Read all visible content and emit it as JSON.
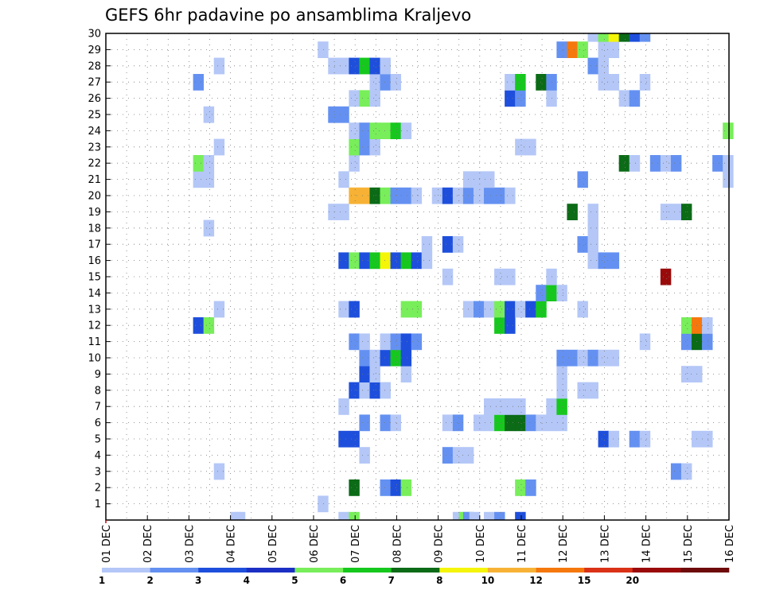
{
  "chart_data": {
    "type": "heatmap",
    "title": "GEFS 6hr padavine po ansamblima Kraljevo",
    "xlabel": "",
    "ylabel": "",
    "x_tick_labels": [
      "01 DEC",
      "02 DEC",
      "03 DEC",
      "04 DEC",
      "05 DEC",
      "06 DEC",
      "07 DEC",
      "08 DEC",
      "09 DEC",
      "10 DEC",
      "11 DEC",
      "12 DEC",
      "13 DEC",
      "14 DEC",
      "15 DEC",
      "16 DEC"
    ],
    "x_range_days": [
      1,
      16
    ],
    "y_tick_labels": [
      "1",
      "2",
      "3",
      "4",
      "5",
      "6",
      "7",
      "8",
      "9",
      "10",
      "11",
      "12",
      "13",
      "14",
      "15",
      "16",
      "17",
      "18",
      "19",
      "20",
      "21",
      "22",
      "23",
      "24",
      "25",
      "26",
      "27",
      "28",
      "29",
      "30"
    ],
    "y_range": [
      0,
      30
    ],
    "grid": true,
    "colorbar": {
      "labels": [
        "1",
        "2",
        "3",
        "4",
        "5",
        "6",
        "7",
        "8",
        "10",
        "12",
        "15",
        "20"
      ],
      "colors": [
        "#b4c7f7",
        "#6491f1",
        "#1e4fdc",
        "#1c2fc4",
        "#78ee5a",
        "#16c81d",
        "#0b6b16",
        "#f5f50a",
        "#f7b236",
        "#f5780d",
        "#da3217",
        "#9a0a0a",
        "#6e0a0a"
      ]
    },
    "cells": [
      {
        "day": 4.0,
        "member": 0,
        "level": 1
      },
      {
        "day": 4.1,
        "member": 0,
        "level": 1
      },
      {
        "day": 6.6,
        "member": 0,
        "level": 1
      },
      {
        "day": 6.85,
        "member": 0,
        "level": 5
      },
      {
        "day": 9.35,
        "member": 0,
        "level": 1
      },
      {
        "day": 9.5,
        "member": 0,
        "level": 5
      },
      {
        "day": 9.6,
        "member": 0,
        "level": 2
      },
      {
        "day": 9.75,
        "member": 0,
        "level": 1
      },
      {
        "day": 10.1,
        "member": 0,
        "level": 1
      },
      {
        "day": 10.35,
        "member": 0,
        "level": 2
      },
      {
        "day": 10.85,
        "member": 0,
        "level": 3
      },
      {
        "day": 6.1,
        "member": 1,
        "level": 1
      },
      {
        "day": 6.85,
        "member": 2,
        "level": 7
      },
      {
        "day": 7.6,
        "member": 2,
        "level": 2
      },
      {
        "day": 7.85,
        "member": 2,
        "level": 3
      },
      {
        "day": 8.1,
        "member": 2,
        "level": 5
      },
      {
        "day": 10.85,
        "member": 2,
        "level": 5
      },
      {
        "day": 11.1,
        "member": 2,
        "level": 2
      },
      {
        "day": 3.6,
        "member": 3,
        "level": 1
      },
      {
        "day": 14.6,
        "member": 3,
        "level": 2
      },
      {
        "day": 14.85,
        "member": 3,
        "level": 1
      },
      {
        "day": 7.1,
        "member": 4,
        "level": 1
      },
      {
        "day": 9.1,
        "member": 4,
        "level": 2
      },
      {
        "day": 9.35,
        "member": 4,
        "level": 1
      },
      {
        "day": 9.6,
        "member": 4,
        "level": 1
      },
      {
        "day": 6.6,
        "member": 5,
        "level": 3
      },
      {
        "day": 6.85,
        "member": 5,
        "level": 3
      },
      {
        "day": 12.85,
        "member": 5,
        "level": 3
      },
      {
        "day": 13.1,
        "member": 5,
        "level": 1
      },
      {
        "day": 13.6,
        "member": 5,
        "level": 2
      },
      {
        "day": 13.85,
        "member": 5,
        "level": 1
      },
      {
        "day": 15.1,
        "member": 5,
        "level": 1
      },
      {
        "day": 15.35,
        "member": 5,
        "level": 1
      },
      {
        "day": 7.1,
        "member": 6,
        "level": 2
      },
      {
        "day": 7.6,
        "member": 6,
        "level": 2
      },
      {
        "day": 7.85,
        "member": 6,
        "level": 1
      },
      {
        "day": 9.1,
        "member": 6,
        "level": 1
      },
      {
        "day": 9.35,
        "member": 6,
        "level": 2
      },
      {
        "day": 9.85,
        "member": 6,
        "level": 1
      },
      {
        "day": 10.1,
        "member": 6,
        "level": 1
      },
      {
        "day": 10.35,
        "member": 6,
        "level": 6
      },
      {
        "day": 10.6,
        "member": 6,
        "level": 7
      },
      {
        "day": 10.85,
        "member": 6,
        "level": 7
      },
      {
        "day": 11.1,
        "member": 6,
        "level": 2
      },
      {
        "day": 11.35,
        "member": 6,
        "level": 1
      },
      {
        "day": 11.6,
        "member": 6,
        "level": 1
      },
      {
        "day": 11.85,
        "member": 6,
        "level": 1
      },
      {
        "day": 6.6,
        "member": 7,
        "level": 1
      },
      {
        "day": 10.1,
        "member": 7,
        "level": 1
      },
      {
        "day": 10.35,
        "member": 7,
        "level": 1
      },
      {
        "day": 10.6,
        "member": 7,
        "level": 1
      },
      {
        "day": 10.85,
        "member": 7,
        "level": 1
      },
      {
        "day": 11.6,
        "member": 7,
        "level": 1
      },
      {
        "day": 11.85,
        "member": 7,
        "level": 6
      },
      {
        "day": 6.85,
        "member": 8,
        "level": 3
      },
      {
        "day": 7.1,
        "member": 8,
        "level": 1
      },
      {
        "day": 7.35,
        "member": 8,
        "level": 3
      },
      {
        "day": 7.6,
        "member": 8,
        "level": 1
      },
      {
        "day": 11.85,
        "member": 8,
        "level": 1
      },
      {
        "day": 12.35,
        "member": 8,
        "level": 1
      },
      {
        "day": 12.6,
        "member": 8,
        "level": 1
      },
      {
        "day": 7.1,
        "member": 9,
        "level": 3
      },
      {
        "day": 7.35,
        "member": 9,
        "level": 1
      },
      {
        "day": 8.1,
        "member": 9,
        "level": 1
      },
      {
        "day": 11.85,
        "member": 9,
        "level": 1
      },
      {
        "day": 14.85,
        "member": 9,
        "level": 1
      },
      {
        "day": 15.1,
        "member": 9,
        "level": 1
      },
      {
        "day": 7.1,
        "member": 10,
        "level": 2
      },
      {
        "day": 7.35,
        "member": 10,
        "level": 1
      },
      {
        "day": 7.6,
        "member": 10,
        "level": 3
      },
      {
        "day": 7.85,
        "member": 10,
        "level": 6
      },
      {
        "day": 8.1,
        "member": 10,
        "level": 3
      },
      {
        "day": 11.85,
        "member": 10,
        "level": 2
      },
      {
        "day": 12.1,
        "member": 10,
        "level": 2
      },
      {
        "day": 12.35,
        "member": 10,
        "level": 1
      },
      {
        "day": 12.6,
        "member": 10,
        "level": 2
      },
      {
        "day": 12.85,
        "member": 10,
        "level": 1
      },
      {
        "day": 13.1,
        "member": 10,
        "level": 1
      },
      {
        "day": 6.85,
        "member": 11,
        "level": 2
      },
      {
        "day": 7.1,
        "member": 11,
        "level": 1
      },
      {
        "day": 7.6,
        "member": 11,
        "level": 1
      },
      {
        "day": 7.85,
        "member": 11,
        "level": 2
      },
      {
        "day": 8.1,
        "member": 11,
        "level": 3
      },
      {
        "day": 8.35,
        "member": 11,
        "level": 2
      },
      {
        "day": 13.85,
        "member": 11,
        "level": 1
      },
      {
        "day": 14.85,
        "member": 11,
        "level": 2
      },
      {
        "day": 15.1,
        "member": 11,
        "level": 7
      },
      {
        "day": 15.35,
        "member": 11,
        "level": 2
      },
      {
        "day": 3.1,
        "member": 12,
        "level": 3
      },
      {
        "day": 3.35,
        "member": 12,
        "level": 5
      },
      {
        "day": 10.35,
        "member": 12,
        "level": 6
      },
      {
        "day": 10.6,
        "member": 12,
        "level": 3
      },
      {
        "day": 14.85,
        "member": 12,
        "level": 5
      },
      {
        "day": 15.1,
        "member": 12,
        "level": 10
      },
      {
        "day": 15.35,
        "member": 12,
        "level": 1
      },
      {
        "day": 3.6,
        "member": 13,
        "level": 1
      },
      {
        "day": 6.6,
        "member": 13,
        "level": 1
      },
      {
        "day": 6.85,
        "member": 13,
        "level": 3
      },
      {
        "day": 8.1,
        "member": 13,
        "level": 5
      },
      {
        "day": 8.35,
        "member": 13,
        "level": 5
      },
      {
        "day": 9.6,
        "member": 13,
        "level": 1
      },
      {
        "day": 9.85,
        "member": 13,
        "level": 2
      },
      {
        "day": 10.1,
        "member": 13,
        "level": 1
      },
      {
        "day": 10.35,
        "member": 13,
        "level": 5
      },
      {
        "day": 10.6,
        "member": 13,
        "level": 3
      },
      {
        "day": 10.85,
        "member": 13,
        "level": 1
      },
      {
        "day": 11.1,
        "member": 13,
        "level": 3
      },
      {
        "day": 11.35,
        "member": 13,
        "level": 6
      },
      {
        "day": 12.35,
        "member": 13,
        "level": 1
      },
      {
        "day": 11.35,
        "member": 14,
        "level": 2
      },
      {
        "day": 11.6,
        "member": 14,
        "level": 6
      },
      {
        "day": 11.85,
        "member": 14,
        "level": 1
      },
      {
        "day": 9.1,
        "member": 15,
        "level": 1
      },
      {
        "day": 10.35,
        "member": 15,
        "level": 1
      },
      {
        "day": 10.6,
        "member": 15,
        "level": 1
      },
      {
        "day": 11.6,
        "member": 15,
        "level": 1
      },
      {
        "day": 14.35,
        "member": 15,
        "level": 12
      },
      {
        "day": 6.6,
        "member": 16,
        "level": 3
      },
      {
        "day": 6.85,
        "member": 16,
        "level": 5
      },
      {
        "day": 7.1,
        "member": 16,
        "level": 3
      },
      {
        "day": 7.35,
        "member": 16,
        "level": 6
      },
      {
        "day": 7.6,
        "member": 16,
        "level": 8
      },
      {
        "day": 7.85,
        "member": 16,
        "level": 3
      },
      {
        "day": 8.1,
        "member": 16,
        "level": 6
      },
      {
        "day": 8.35,
        "member": 16,
        "level": 3
      },
      {
        "day": 8.6,
        "member": 16,
        "level": 1
      },
      {
        "day": 12.6,
        "member": 16,
        "level": 1
      },
      {
        "day": 12.85,
        "member": 16,
        "level": 2
      },
      {
        "day": 13.1,
        "member": 16,
        "level": 2
      },
      {
        "day": 8.6,
        "member": 17,
        "level": 1
      },
      {
        "day": 9.1,
        "member": 17,
        "level": 3
      },
      {
        "day": 9.35,
        "member": 17,
        "level": 1
      },
      {
        "day": 12.35,
        "member": 17,
        "level": 2
      },
      {
        "day": 12.6,
        "member": 17,
        "level": 1
      },
      {
        "day": 3.35,
        "member": 18,
        "level": 1
      },
      {
        "day": 12.6,
        "member": 18,
        "level": 1
      },
      {
        "day": 6.35,
        "member": 19,
        "level": 1
      },
      {
        "day": 6.6,
        "member": 19,
        "level": 1
      },
      {
        "day": 12.1,
        "member": 19,
        "level": 7
      },
      {
        "day": 12.6,
        "member": 19,
        "level": 1
      },
      {
        "day": 14.35,
        "member": 19,
        "level": 1
      },
      {
        "day": 14.6,
        "member": 19,
        "level": 1
      },
      {
        "day": 14.85,
        "member": 19,
        "level": 7
      },
      {
        "day": 6.85,
        "member": 20,
        "level": 9
      },
      {
        "day": 7.1,
        "member": 20,
        "level": 9
      },
      {
        "day": 7.35,
        "member": 20,
        "level": 7
      },
      {
        "day": 7.6,
        "member": 20,
        "level": 5
      },
      {
        "day": 7.85,
        "member": 20,
        "level": 2
      },
      {
        "day": 8.1,
        "member": 20,
        "level": 2
      },
      {
        "day": 8.35,
        "member": 20,
        "level": 1
      },
      {
        "day": 8.85,
        "member": 20,
        "level": 1
      },
      {
        "day": 9.1,
        "member": 20,
        "level": 3
      },
      {
        "day": 9.35,
        "member": 20,
        "level": 1
      },
      {
        "day": 9.6,
        "member": 20,
        "level": 2
      },
      {
        "day": 9.85,
        "member": 20,
        "level": 1
      },
      {
        "day": 10.1,
        "member": 20,
        "level": 2
      },
      {
        "day": 10.35,
        "member": 20,
        "level": 2
      },
      {
        "day": 10.6,
        "member": 20,
        "level": 1
      },
      {
        "day": 3.1,
        "member": 21,
        "level": 1
      },
      {
        "day": 3.35,
        "member": 21,
        "level": 1
      },
      {
        "day": 6.6,
        "member": 21,
        "level": 1
      },
      {
        "day": 9.6,
        "member": 21,
        "level": 1
      },
      {
        "day": 9.85,
        "member": 21,
        "level": 1
      },
      {
        "day": 10.1,
        "member": 21,
        "level": 1
      },
      {
        "day": 12.35,
        "member": 21,
        "level": 2
      },
      {
        "day": 15.85,
        "member": 21,
        "level": 1
      },
      {
        "day": 3.1,
        "member": 22,
        "level": 5
      },
      {
        "day": 3.35,
        "member": 22,
        "level": 1
      },
      {
        "day": 6.85,
        "member": 22,
        "level": 1
      },
      {
        "day": 13.35,
        "member": 22,
        "level": 7
      },
      {
        "day": 13.6,
        "member": 22,
        "level": 1
      },
      {
        "day": 14.1,
        "member": 22,
        "level": 2
      },
      {
        "day": 14.35,
        "member": 22,
        "level": 1
      },
      {
        "day": 14.6,
        "member": 22,
        "level": 2
      },
      {
        "day": 15.6,
        "member": 22,
        "level": 2
      },
      {
        "day": 15.85,
        "member": 22,
        "level": 1
      },
      {
        "day": 3.6,
        "member": 23,
        "level": 1
      },
      {
        "day": 6.85,
        "member": 23,
        "level": 5
      },
      {
        "day": 7.1,
        "member": 23,
        "level": 2
      },
      {
        "day": 7.35,
        "member": 23,
        "level": 1
      },
      {
        "day": 10.85,
        "member": 23,
        "level": 1
      },
      {
        "day": 11.1,
        "member": 23,
        "level": 1
      },
      {
        "day": 6.85,
        "member": 24,
        "level": 1
      },
      {
        "day": 7.1,
        "member": 24,
        "level": 2
      },
      {
        "day": 7.35,
        "member": 24,
        "level": 5
      },
      {
        "day": 7.6,
        "member": 24,
        "level": 5
      },
      {
        "day": 7.85,
        "member": 24,
        "level": 6
      },
      {
        "day": 8.1,
        "member": 24,
        "level": 1
      },
      {
        "day": 15.85,
        "member": 24,
        "level": 5
      },
      {
        "day": 3.35,
        "member": 25,
        "level": 1
      },
      {
        "day": 6.35,
        "member": 25,
        "level": 2
      },
      {
        "day": 6.6,
        "member": 25,
        "level": 2
      },
      {
        "day": 6.85,
        "member": 26,
        "level": 1
      },
      {
        "day": 7.1,
        "member": 26,
        "level": 5
      },
      {
        "day": 7.35,
        "member": 26,
        "level": 1
      },
      {
        "day": 10.6,
        "member": 26,
        "level": 3
      },
      {
        "day": 10.85,
        "member": 26,
        "level": 2
      },
      {
        "day": 11.6,
        "member": 26,
        "level": 1
      },
      {
        "day": 13.35,
        "member": 26,
        "level": 1
      },
      {
        "day": 13.6,
        "member": 26,
        "level": 2
      },
      {
        "day": 3.1,
        "member": 27,
        "level": 2
      },
      {
        "day": 7.35,
        "member": 27,
        "level": 1
      },
      {
        "day": 7.6,
        "member": 27,
        "level": 2
      },
      {
        "day": 7.85,
        "member": 27,
        "level": 1
      },
      {
        "day": 10.6,
        "member": 27,
        "level": 1
      },
      {
        "day": 10.85,
        "member": 27,
        "level": 6
      },
      {
        "day": 11.35,
        "member": 27,
        "level": 7
      },
      {
        "day": 11.6,
        "member": 27,
        "level": 2
      },
      {
        "day": 12.85,
        "member": 27,
        "level": 1
      },
      {
        "day": 13.1,
        "member": 27,
        "level": 1
      },
      {
        "day": 13.85,
        "member": 27,
        "level": 1
      },
      {
        "day": 3.6,
        "member": 28,
        "level": 1
      },
      {
        "day": 6.35,
        "member": 28,
        "level": 1
      },
      {
        "day": 6.6,
        "member": 28,
        "level": 1
      },
      {
        "day": 6.85,
        "member": 28,
        "level": 3
      },
      {
        "day": 7.1,
        "member": 28,
        "level": 6
      },
      {
        "day": 7.35,
        "member": 28,
        "level": 3
      },
      {
        "day": 7.6,
        "member": 28,
        "level": 1
      },
      {
        "day": 12.6,
        "member": 28,
        "level": 2
      },
      {
        "day": 12.85,
        "member": 28,
        "level": 1
      },
      {
        "day": 6.1,
        "member": 29,
        "level": 1
      },
      {
        "day": 11.85,
        "member": 29,
        "level": 2
      },
      {
        "day": 12.1,
        "member": 29,
        "level": 10
      },
      {
        "day": 12.35,
        "member": 29,
        "level": 5
      },
      {
        "day": 12.85,
        "member": 29,
        "level": 1
      },
      {
        "day": 13.1,
        "member": 29,
        "level": 1
      },
      {
        "day": 12.6,
        "member": 30,
        "level": 1
      },
      {
        "day": 12.85,
        "member": 30,
        "level": 5
      },
      {
        "day": 13.1,
        "member": 30,
        "level": 8
      },
      {
        "day": 13.35,
        "member": 30,
        "level": 7
      },
      {
        "day": 13.6,
        "member": 30,
        "level": 3
      },
      {
        "day": 13.85,
        "member": 30,
        "level": 2
      }
    ]
  }
}
